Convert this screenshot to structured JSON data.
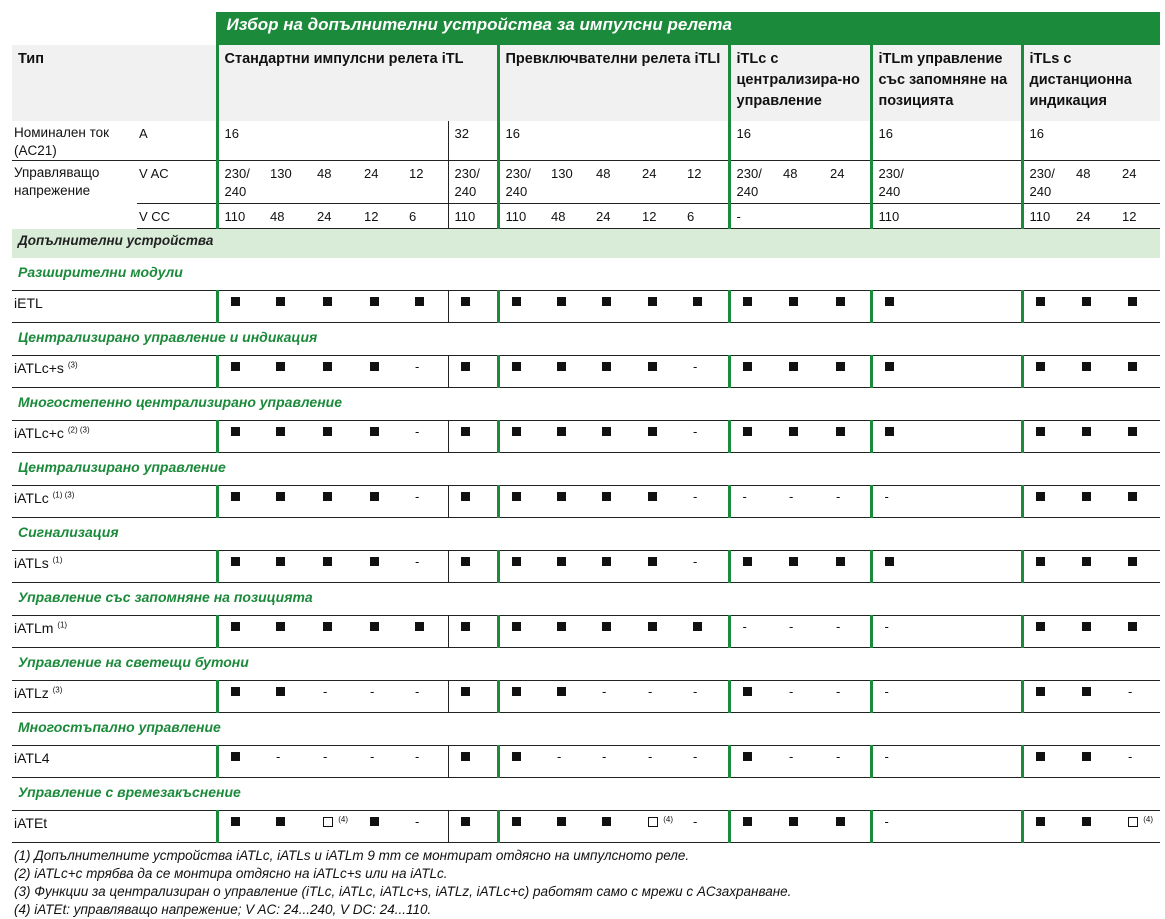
{
  "title": "Избор на допълнителни устройства за импулсни релета",
  "header": {
    "type": "Тип",
    "groups": [
      {
        "label": "Стандартни импулсни релета iTL"
      },
      {
        "label": "Превключвателни релета iTLI"
      },
      {
        "label": "iTLc с централизира-но управление"
      },
      {
        "label": "iTLm управление със запомняне на позицията"
      },
      {
        "label": "iTLs с дистанционна индикация"
      }
    ]
  },
  "rated_current": {
    "label": "Номинален ток (AC21)",
    "unit": "A",
    "values": [
      "16",
      "",
      "",
      "",
      "",
      "32",
      "16",
      "",
      "",
      "",
      "",
      "16",
      "",
      "",
      "16",
      "16",
      "",
      ""
    ]
  },
  "control_voltage": {
    "label": "Управляващо напрежение",
    "vac_unit": "V AC",
    "vac": [
      "230/\n240",
      "130",
      "48",
      "24",
      "12",
      "230/\n240",
      "230/\n240",
      "130",
      "48",
      "24",
      "12",
      "230/\n240",
      "48",
      "24",
      "230/\n240",
      "230/\n240",
      "48",
      "24"
    ],
    "vdc_unit": "V CC",
    "vdc": [
      "110",
      "48",
      "24",
      "12",
      "6",
      "110",
      "110",
      "48",
      "24",
      "12",
      "6",
      "-",
      "",
      "",
      "110",
      "110",
      "24",
      "12"
    ]
  },
  "accessories_label": "Допълнителни устройства",
  "sections": [
    {
      "category": "Разширителни модули",
      "name": "iETL",
      "sup": "",
      "marks": [
        "s",
        "s",
        "s",
        "s",
        "s",
        "s",
        "s",
        "s",
        "s",
        "s",
        "s",
        "s",
        "s",
        "s",
        "s",
        "s",
        "s",
        "s"
      ]
    },
    {
      "category": "Централизирано управление и индикация",
      "name": "iATLc+s",
      "sup": "(3)",
      "marks": [
        "s",
        "s",
        "s",
        "s",
        "-",
        "s",
        "s",
        "s",
        "s",
        "s",
        "-",
        "s",
        "s",
        "s",
        "s",
        "s",
        "s",
        "s"
      ]
    },
    {
      "category": "Многостепенно централизирано управление",
      "name": "iATLc+c",
      "sup": "(2) (3)",
      "marks": [
        "s",
        "s",
        "s",
        "s",
        "-",
        "s",
        "s",
        "s",
        "s",
        "s",
        "-",
        "s",
        "s",
        "s",
        "s",
        "s",
        "s",
        "s"
      ]
    },
    {
      "category": "Централизирано управление",
      "name": "iATLc",
      "sup": "(1) (3)",
      "marks": [
        "s",
        "s",
        "s",
        "s",
        "-",
        "s",
        "s",
        "s",
        "s",
        "s",
        "-",
        "-",
        "-",
        "-",
        "-",
        "s",
        "s",
        "s"
      ]
    },
    {
      "category": "Сигнализация",
      "name": "iATLs",
      "sup": "(1)",
      "marks": [
        "s",
        "s",
        "s",
        "s",
        "-",
        "s",
        "s",
        "s",
        "s",
        "s",
        "-",
        "s",
        "s",
        "s",
        "s",
        "s",
        "s",
        "s"
      ]
    },
    {
      "category": "Управление със запомняне на позицията",
      "name": "iATLm",
      "sup": "(1)",
      "marks": [
        "s",
        "s",
        "s",
        "s",
        "s",
        "s",
        "s",
        "s",
        "s",
        "s",
        "s",
        "-",
        "-",
        "-",
        "-",
        "s",
        "s",
        "s"
      ]
    },
    {
      "category": "Управление на светещи бутони",
      "name": "iATLz",
      "sup": "(3)",
      "marks": [
        "s",
        "s",
        "-",
        "-",
        "-",
        "s",
        "s",
        "s",
        "-",
        "-",
        "-",
        "s",
        "-",
        "-",
        "-",
        "s",
        "s",
        "-"
      ]
    },
    {
      "category": "Многостъпално управление",
      "name": "iATL4",
      "sup": "",
      "marks": [
        "s",
        "-",
        "-",
        "-",
        "-",
        "s",
        "s",
        "-",
        "-",
        "-",
        "-",
        "s",
        "-",
        "-",
        "-",
        "s",
        "s",
        "-"
      ]
    },
    {
      "category": "Управление с времезакъснение",
      "name": "iATEt",
      "sup": "",
      "marks": [
        "s",
        "s",
        "o",
        "s",
        "-",
        "s",
        "s",
        "s",
        "s",
        "o",
        "-",
        "s",
        "s",
        "s",
        "-",
        "s",
        "s",
        "o"
      ]
    }
  ],
  "open_note": "(4)",
  "notes": [
    "(1) Допълнителните устройства iATLc, iATLs и iATLm 9 mm се монтират отдясно на импулсното реле.",
    "(2) iATLc+c трябва да се монтира отдясно на iATLc+s или на iATLc.",
    "(3) Функции за централизиран о управление (iTLc, iATLc, iATLc+s, iATLz, iATLc+c) работят само с мрежи с ACзахранване.",
    "(4) iATEt: управляващо напрежение; V AC: 24...240, V DC: 24...110."
  ]
}
